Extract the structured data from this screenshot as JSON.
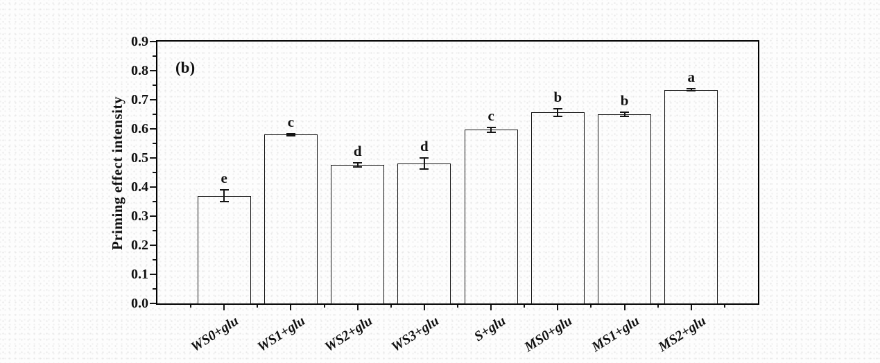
{
  "chart_data": {
    "type": "bar",
    "panel_label": "(b)",
    "title": "",
    "xlabel": "",
    "ylabel": "Priming effect intensity",
    "ylim": [
      0.0,
      0.9
    ],
    "ytick_step": 0.1,
    "ytick_labels": [
      "0.0",
      "0.1",
      "0.2",
      "0.3",
      "0.4",
      "0.5",
      "0.6",
      "0.7",
      "0.8",
      "0.9"
    ],
    "grid": false,
    "legend_position": "none",
    "bar_fill": "transparent",
    "bar_border_color": "#141414",
    "axis_color": "#000000",
    "categories": [
      "WS0+glu",
      "WS1+glu",
      "WS2+glu",
      "WS3+glu",
      "S+glu",
      "MS0+glu",
      "MS1+glu",
      "MS2+glu"
    ],
    "values": [
      0.37,
      0.58,
      0.476,
      0.48,
      0.597,
      0.656,
      0.65,
      0.734
    ],
    "errors": [
      0.021,
      0.003,
      0.008,
      0.019,
      0.008,
      0.012,
      0.007,
      0.004
    ],
    "sig_letters": [
      "e",
      "c",
      "d",
      "d",
      "c",
      "b",
      "b",
      "a"
    ]
  }
}
